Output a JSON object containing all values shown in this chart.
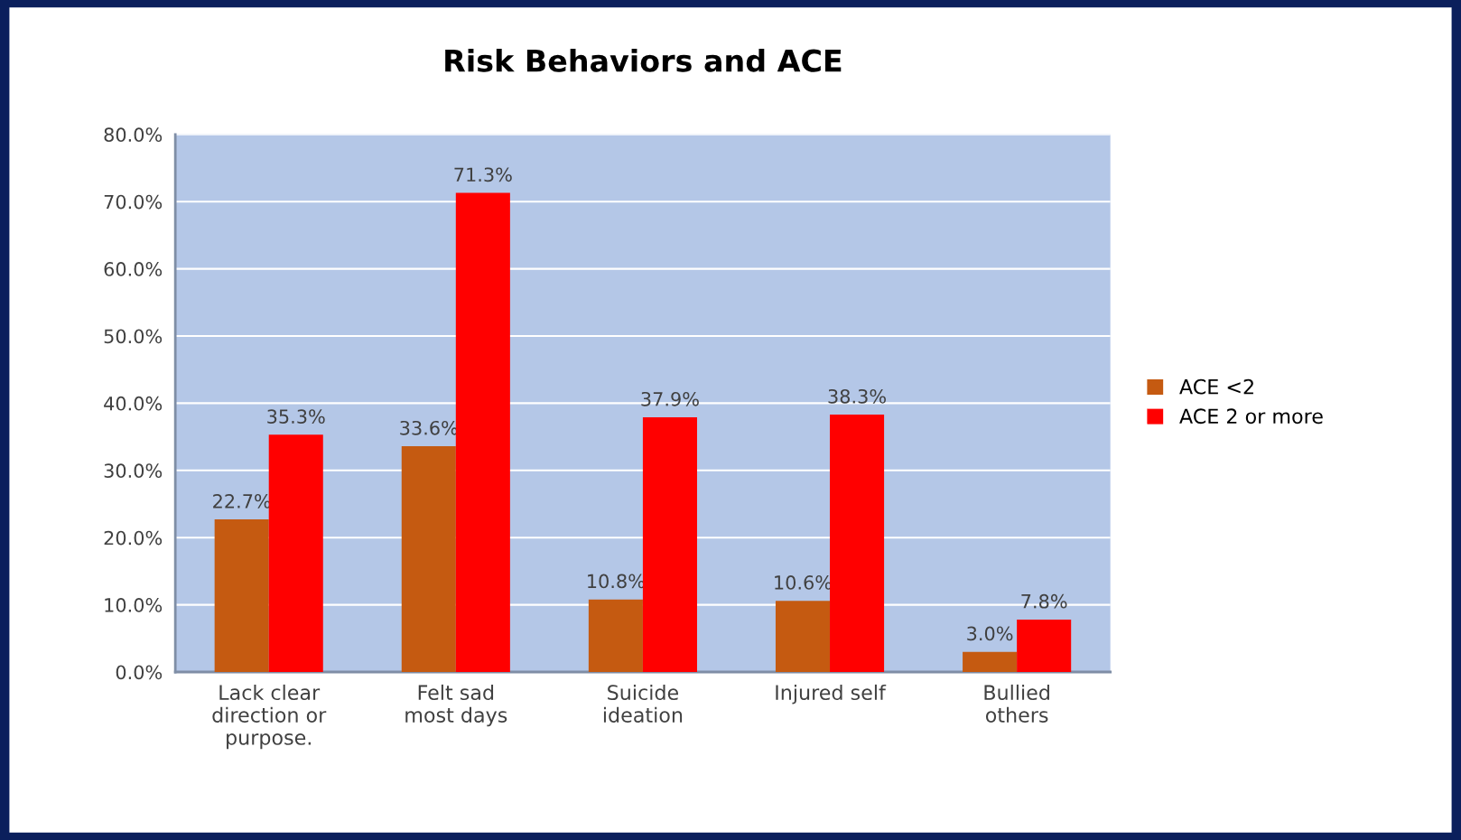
{
  "chart_data": {
    "type": "bar",
    "title": "Risk Behaviors and ACE",
    "categories": [
      "Lack clear\ndirection or\npurpose.",
      "Felt sad\nmost days",
      "Suicide\nideation",
      "Injured self",
      "Bullied\nothers"
    ],
    "series": [
      {
        "name": "ACE <2",
        "color": "#c55a11",
        "values": [
          22.7,
          33.6,
          10.8,
          10.6,
          3.0
        ],
        "value_labels": [
          "22.7%",
          "33.6%",
          "10.8%",
          "10.6%",
          "3.0%"
        ]
      },
      {
        "name": "ACE 2 or more",
        "color": "#ff0000",
        "values": [
          35.3,
          71.3,
          37.9,
          38.3,
          7.8
        ],
        "value_labels": [
          "35.3%",
          "71.3%",
          "37.9%",
          "38.3%",
          "7.8%"
        ]
      }
    ],
    "ylim": [
      0,
      80
    ],
    "yticks": [
      {
        "value": 0,
        "label": "0.0%"
      },
      {
        "value": 10,
        "label": "10.0%"
      },
      {
        "value": 20,
        "label": "20.0%"
      },
      {
        "value": 30,
        "label": "30.0%"
      },
      {
        "value": 40,
        "label": "40.0%"
      },
      {
        "value": 50,
        "label": "50.0%"
      },
      {
        "value": 60,
        "label": "60.0%"
      },
      {
        "value": 70,
        "label": "70.0%"
      },
      {
        "value": 80,
        "label": "80.0%"
      }
    ],
    "grid": "y",
    "legend": "right"
  }
}
